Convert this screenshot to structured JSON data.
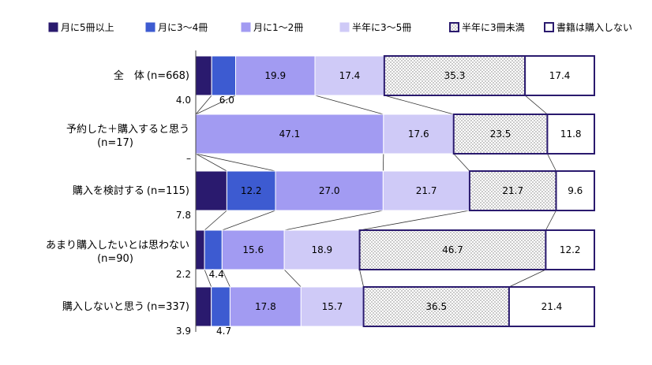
{
  "chart_data": {
    "type": "bar",
    "orientation": "horizontal",
    "stacked": "100%",
    "xlim": [
      0,
      100
    ],
    "legend_position": "top",
    "series": [
      {
        "name": "月に5冊以上",
        "color": "#2a1a6e",
        "pattern": "solid",
        "values": [
          4.0,
          0,
          7.8,
          2.2,
          3.9
        ]
      },
      {
        "name": "月に3～4冊",
        "color": "#3d5bd1",
        "pattern": "solid",
        "values": [
          6.0,
          0,
          12.2,
          4.4,
          4.7
        ]
      },
      {
        "name": "月に1～2冊",
        "color": "#a29bf2",
        "pattern": "solid",
        "values": [
          19.9,
          47.1,
          27.0,
          15.6,
          17.8
        ]
      },
      {
        "name": "半年に3～5冊",
        "color": "#cfcaf7",
        "pattern": "solid",
        "values": [
          17.4,
          17.6,
          21.7,
          18.9,
          15.7
        ]
      },
      {
        "name": "半年に3冊未満",
        "color": "#ffffff",
        "pattern": "dots",
        "values": [
          35.3,
          23.5,
          21.7,
          46.7,
          36.5
        ]
      },
      {
        "name": "書籍は購入しない",
        "color": "#ffffff",
        "pattern": "none",
        "values": [
          17.4,
          11.8,
          9.6,
          12.2,
          21.4
        ]
      }
    ],
    "categories": [
      {
        "lines": [
          "全　体",
          "(n=668)"
        ],
        "layout": "inline"
      },
      {
        "lines": [
          "予約した＋購入すると思う",
          "(n=17)"
        ],
        "layout": "twoline"
      },
      {
        "lines": [
          "購入を検討する",
          "(n=115)"
        ],
        "layout": "inline"
      },
      {
        "lines": [
          "あまり購入したいとは思わない",
          "(n=90)"
        ],
        "layout": "twoline"
      },
      {
        "lines": [
          "購入しないと思う",
          "(n=337)"
        ],
        "layout": "inline"
      }
    ],
    "data_labels": [
      [
        "4.0",
        "6.0",
        "19.9",
        "17.4",
        "35.3",
        "17.4"
      ],
      [
        "–",
        "",
        "47.1",
        "17.6",
        "23.5",
        "11.8"
      ],
      [
        "7.8",
        "12.2",
        "27.0",
        "21.7",
        "21.7",
        "9.6"
      ],
      [
        "2.2",
        "4.4",
        "15.6",
        "18.9",
        "46.7",
        "12.2"
      ],
      [
        "3.9",
        "4.7",
        "17.8",
        "15.7",
        "36.5",
        "21.4"
      ]
    ]
  }
}
